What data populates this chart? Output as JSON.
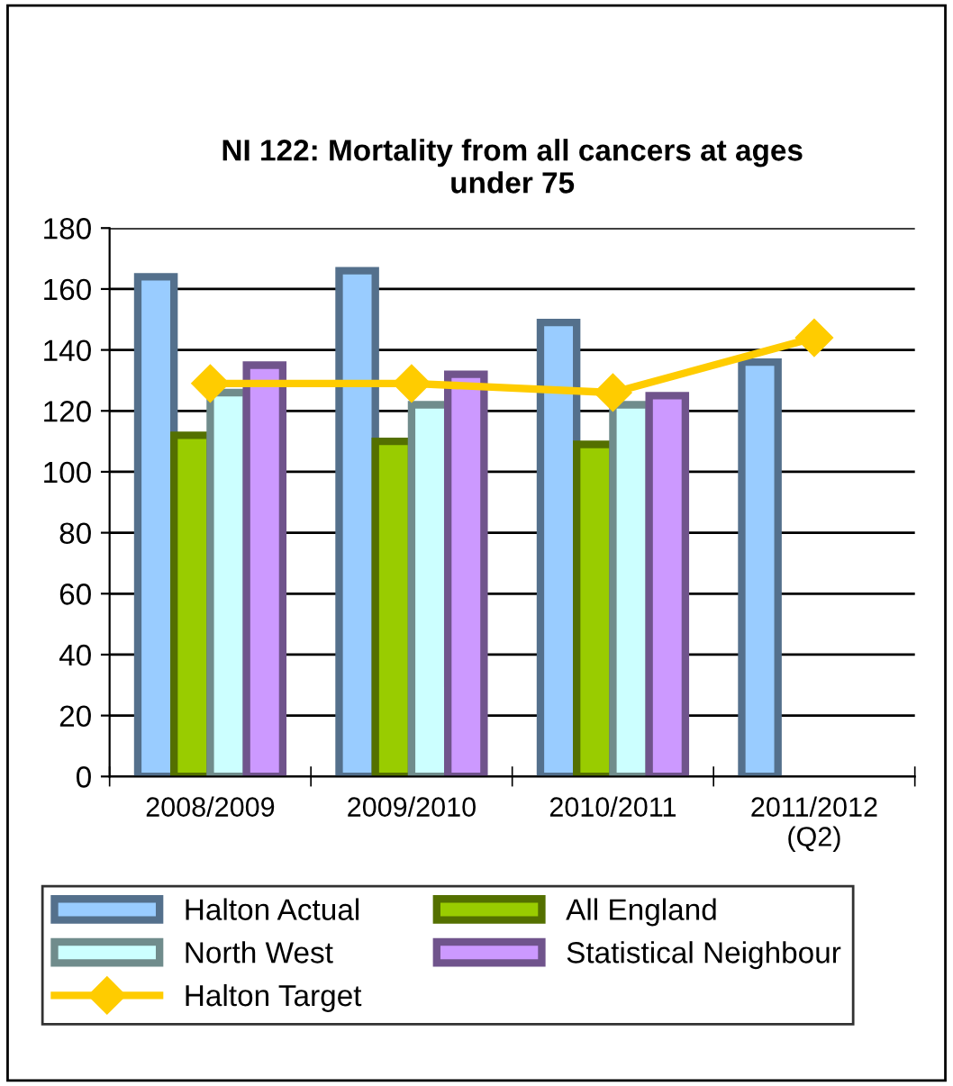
{
  "chart_data": {
    "type": "bar",
    "title": "NI 122: Mortality from all cancers at ages\nunder 75",
    "categories": [
      "2008/2009",
      "2009/2010",
      "2010/2011",
      "2011/2012\n(Q2)"
    ],
    "series": [
      {
        "name": "Halton Actual",
        "color": "#99ccff",
        "values": [
          164,
          166,
          149,
          136
        ]
      },
      {
        "name": "All England",
        "color": "#99cc00",
        "values": [
          112,
          110,
          109,
          null
        ]
      },
      {
        "name": "North West",
        "color": "#ccffff",
        "values": [
          126,
          122,
          122,
          null
        ]
      },
      {
        "name": "Statistical Neighbour",
        "color": "#cc99ff",
        "values": [
          135,
          132,
          125,
          null
        ]
      },
      {
        "name": "Halton Target",
        "type": "line",
        "color": "#ffcc00",
        "marker": "diamond",
        "values": [
          129,
          129,
          126,
          144
        ]
      }
    ],
    "ylim": [
      0,
      180
    ],
    "yticks": [
      0,
      20,
      40,
      60,
      80,
      100,
      120,
      140,
      160,
      180
    ],
    "grid": "y",
    "legend": "bottom"
  }
}
